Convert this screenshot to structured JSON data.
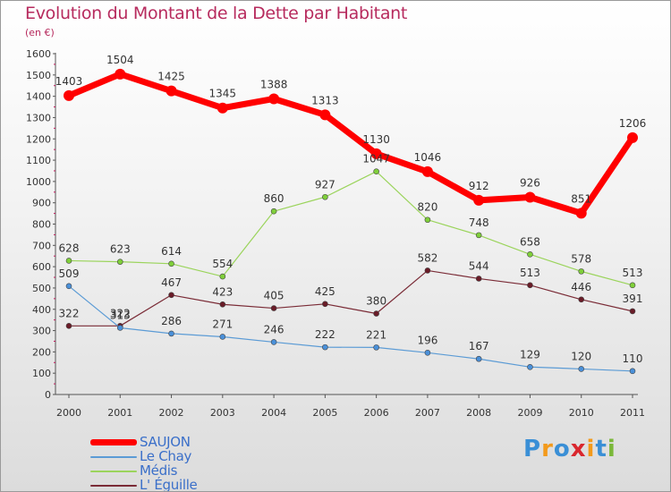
{
  "title": "Evolution du Montant de la Dette par Habitant",
  "unit": "(en €)",
  "logo": {
    "letters": [
      "P",
      "r",
      "o",
      "x",
      "i",
      "t",
      "i"
    ],
    "colors": [
      "#3a8fd6",
      "#f39a1b",
      "#3a8fd6",
      "#d9272e",
      "#f39a1b",
      "#3a8fd6",
      "#7bb83a"
    ]
  },
  "chart_data": {
    "type": "line",
    "title": "Evolution du Montant de la Dette par Habitant",
    "ylabel": "(en €)",
    "xlabel": "",
    "categories": [
      "2000",
      "2001",
      "2002",
      "2003",
      "2004",
      "2005",
      "2006",
      "2007",
      "2008",
      "2009",
      "2010",
      "2011"
    ],
    "ylim": [
      0,
      1600
    ],
    "yticks": [
      0,
      100,
      200,
      300,
      400,
      500,
      600,
      700,
      800,
      900,
      1000,
      1100,
      1200,
      1300,
      1400,
      1500,
      1600
    ],
    "grid": false,
    "legend_position": "bottom-left",
    "series": [
      {
        "name": "SAUJON",
        "color": "#ff0000",
        "values": [
          1403,
          1504,
          1425,
          1345,
          1388,
          1313,
          1130,
          1046,
          912,
          926,
          851,
          1206
        ]
      },
      {
        "name": "Le Chay",
        "color": "#5b9bd5",
        "values": [
          509,
          313,
          286,
          271,
          246,
          222,
          221,
          196,
          167,
          129,
          120,
          110
        ]
      },
      {
        "name": "Médis",
        "color": "#9bd45c",
        "values": [
          628,
          623,
          614,
          554,
          860,
          927,
          1047,
          820,
          748,
          658,
          578,
          513
        ]
      },
      {
        "name": "L' Éguille",
        "color": "#7a2b36",
        "values": [
          322,
          322,
          467,
          423,
          405,
          425,
          380,
          582,
          544,
          513,
          446,
          391
        ]
      }
    ]
  }
}
